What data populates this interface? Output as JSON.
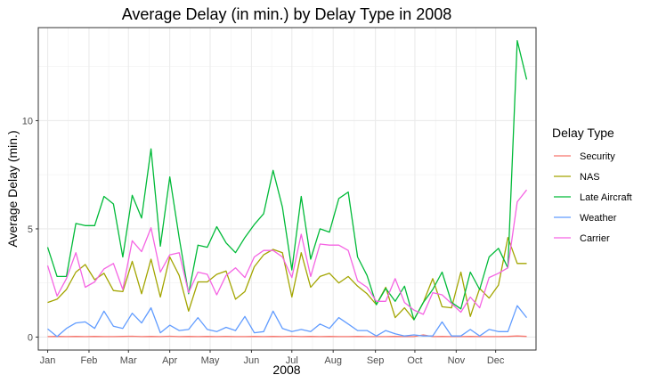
{
  "chart_data": {
    "type": "line",
    "title": "Average Delay (in min.) by Delay Type in 2008",
    "xlabel": "2008",
    "ylabel": "Average Delay (min.)",
    "x_ticks": [
      "Jan",
      "Feb",
      "Mar",
      "Apr",
      "May",
      "Jun",
      "Jul",
      "Aug",
      "Sep",
      "Oct",
      "Nov",
      "Dec"
    ],
    "y_ticks": [
      0,
      5,
      10
    ],
    "xlim": [
      0,
      53
    ],
    "ylim": [
      -0.6,
      14.3
    ],
    "grid": true,
    "legend": {
      "title": "Delay Type",
      "position": "right"
    },
    "x": [
      1,
      2,
      3,
      4,
      5,
      6,
      7,
      8,
      9,
      10,
      11,
      12,
      13,
      14,
      15,
      16,
      17,
      18,
      19,
      20,
      21,
      22,
      23,
      24,
      25,
      26,
      27,
      28,
      29,
      30,
      31,
      32,
      33,
      34,
      35,
      36,
      37,
      38,
      39,
      40,
      41,
      42,
      43,
      44,
      45,
      46,
      47,
      48,
      49,
      50,
      51,
      52
    ],
    "series": [
      {
        "name": "Security",
        "color": "#F8766D",
        "values": [
          0.02,
          0.03,
          0.02,
          0.03,
          0.02,
          0.03,
          0.02,
          0.02,
          0.03,
          0.04,
          0.02,
          0.03,
          0.02,
          0.04,
          0.02,
          0.03,
          0.02,
          0.03,
          0.02,
          0.03,
          0.02,
          0.02,
          0.03,
          0.02,
          0.03,
          0.02,
          0.04,
          0.02,
          0.03,
          0.02,
          0.03,
          0.02,
          0.02,
          0.03,
          0.02,
          0.02,
          0.02,
          0.03,
          0.02,
          0.02,
          0.1,
          0.02,
          0.03,
          0.02,
          0.02,
          0.03,
          0.02,
          0.02,
          0.02,
          0.03,
          0.05,
          0.03
        ]
      },
      {
        "name": "NAS",
        "color": "#A3A500",
        "values": [
          1.6,
          1.75,
          2.2,
          3.0,
          3.35,
          2.65,
          2.95,
          2.15,
          2.1,
          3.5,
          2.0,
          3.6,
          1.85,
          3.7,
          2.85,
          1.2,
          2.55,
          2.55,
          2.9,
          3.05,
          1.75,
          2.1,
          3.25,
          3.8,
          4.05,
          3.9,
          1.85,
          3.9,
          2.3,
          2.8,
          2.95,
          2.5,
          2.8,
          2.35,
          2.0,
          1.5,
          2.3,
          0.9,
          1.35,
          0.8,
          1.6,
          2.7,
          1.4,
          1.35,
          3.0,
          0.95,
          2.25,
          1.8,
          2.4,
          4.6,
          3.4,
          3.4
        ]
      },
      {
        "name": "Late Aircraft",
        "color": "#00BA38",
        "values": [
          4.15,
          2.8,
          2.8,
          5.25,
          5.15,
          5.15,
          6.5,
          6.15,
          3.7,
          6.55,
          5.5,
          8.7,
          4.2,
          7.4,
          4.6,
          2.0,
          4.25,
          4.15,
          5.1,
          4.35,
          3.9,
          4.6,
          5.2,
          5.7,
          7.7,
          6.0,
          3.1,
          6.5,
          3.6,
          5.0,
          4.85,
          6.4,
          6.7,
          3.7,
          2.85,
          1.5,
          2.25,
          1.65,
          2.35,
          0.8,
          1.6,
          2.2,
          3.0,
          1.6,
          1.3,
          3.0,
          2.2,
          3.7,
          4.1,
          3.2,
          13.7,
          11.9
        ]
      },
      {
        "name": "Weather",
        "color": "#619CFF",
        "values": [
          0.38,
          0.02,
          0.4,
          0.65,
          0.7,
          0.4,
          1.2,
          0.5,
          0.4,
          1.1,
          0.65,
          1.35,
          0.2,
          0.55,
          0.3,
          0.35,
          0.9,
          0.35,
          0.25,
          0.45,
          0.3,
          0.95,
          0.2,
          0.25,
          1.2,
          0.4,
          0.25,
          0.35,
          0.25,
          0.6,
          0.4,
          0.9,
          0.6,
          0.3,
          0.3,
          0.05,
          0.3,
          0.15,
          0.05,
          0.1,
          0.05,
          0.05,
          0.7,
          0.05,
          0.05,
          0.35,
          0.05,
          0.35,
          0.25,
          0.25,
          1.45,
          0.9
        ]
      },
      {
        "name": "Carrier",
        "color": "#F564E3",
        "values": [
          3.3,
          1.9,
          2.7,
          3.9,
          2.3,
          2.55,
          3.15,
          3.4,
          2.2,
          4.45,
          3.95,
          5.05,
          3.0,
          3.8,
          3.9,
          2.05,
          3.0,
          2.9,
          1.95,
          2.85,
          3.2,
          2.75,
          3.7,
          4.0,
          4.0,
          3.7,
          2.75,
          4.75,
          2.8,
          4.3,
          4.25,
          4.25,
          4.0,
          2.6,
          2.3,
          1.65,
          1.65,
          2.7,
          1.6,
          1.25,
          1.05,
          2.05,
          1.95,
          1.55,
          1.15,
          1.85,
          1.35,
          2.75,
          2.95,
          3.2,
          6.25,
          6.8
        ]
      }
    ]
  }
}
